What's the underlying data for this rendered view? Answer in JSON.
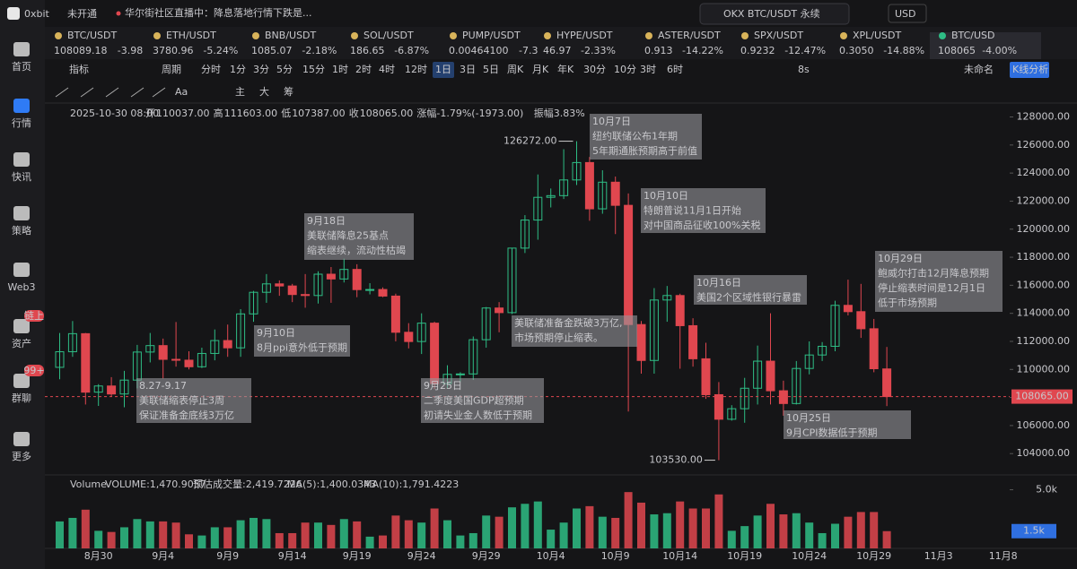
{
  "header": {
    "brand": "0xbit",
    "status": "未开通",
    "news": "华尔街社区直播中：降息落地行情下跌是...",
    "search": "OKX BTC/USDT 永续",
    "currency": "USD"
  },
  "sidebar": [
    {
      "label": "首页"
    },
    {
      "label": "行情"
    },
    {
      "label": "快讯"
    },
    {
      "label": "策略"
    },
    {
      "label": "Web3"
    },
    {
      "label": "资产",
      "badge": "链上"
    },
    {
      "label": "群聊",
      "badge": "99+"
    },
    {
      "label": "更多"
    }
  ],
  "tickers": [
    {
      "symbol": "BTC/USDT",
      "price": "108089.18",
      "change": "-3.98"
    },
    {
      "symbol": "ETH/USDT",
      "price": "3780.96",
      "change": "-5.24%"
    },
    {
      "symbol": "BNB/USDT",
      "price": "1085.07",
      "change": "-2.18%"
    },
    {
      "symbol": "SOL/USDT",
      "price": "186.65",
      "change": "-6.87%"
    },
    {
      "symbol": "PUMP/USDT",
      "price": "0.00464100",
      "change": "-7.3"
    },
    {
      "symbol": "HYPE/USDT",
      "price": "46.97",
      "change": "-2.33%"
    },
    {
      "symbol": "ASTER/USDT",
      "price": "0.913",
      "change": "-14.22%"
    },
    {
      "symbol": "SPX/USDT",
      "price": "0.9232",
      "change": "-12.47%"
    },
    {
      "symbol": "XPL/USDT",
      "price": "0.3050",
      "change": "-14.88%"
    },
    {
      "symbol": "BTC/USD",
      "price": "108065",
      "change": "-4.00%"
    }
  ],
  "toolbar": {
    "items": [
      "指标",
      "周期",
      "分时",
      "1分",
      "3分",
      "5分",
      "15分",
      "1时",
      "2时",
      "4时",
      "12时",
      "1日",
      "3日",
      "5日",
      "周K",
      "月K",
      "年K",
      "30分",
      "10分",
      "3时",
      "6时"
    ],
    "active": "1日",
    "right": [
      "8s",
      "未命名",
      "K线分析"
    ]
  },
  "draw_tools": [
    "Aa",
    "主",
    "大",
    "筹"
  ],
  "info": {
    "time": "2025-10-30 08:00",
    "fields": [
      {
        "label": "开",
        "value": "110037.00"
      },
      {
        "label": "高",
        "value": "111603.00"
      },
      {
        "label": "低",
        "value": "107387.00"
      },
      {
        "label": "收",
        "value": "108065.00"
      },
      {
        "label": "涨幅",
        "value": "-1.79%(-1973.00)"
      },
      {
        "label": "振幅",
        "value": "3.83%"
      }
    ]
  },
  "volume_info": {
    "title": "Volume",
    "volume": "VOLUME:1,470.9057",
    "estimate": "预估成交量:2,419.7226",
    "ma5": "MA(5):1,400.0343",
    "ma10": "MA(10):1,791.4223"
  },
  "chart_data": {
    "type": "candlestick",
    "up_color": "#2ebd85",
    "down_color": "#e0474f",
    "categories": [
      null,
      null,
      null,
      "8月30",
      null,
      null,
      null,
      null,
      "9月4",
      null,
      null,
      null,
      null,
      "9月9",
      null,
      null,
      null,
      null,
      "9月14",
      null,
      null,
      null,
      null,
      "9月19",
      null,
      null,
      null,
      null,
      "9月24",
      null,
      null,
      null,
      null,
      "9月29",
      null,
      null,
      null,
      null,
      "10月4",
      null,
      null,
      null,
      null,
      "10月9",
      null,
      null,
      null,
      null,
      "10月14",
      null,
      null,
      null,
      null,
      "10月19",
      null,
      null,
      null,
      null,
      "10月24",
      null,
      null,
      null,
      null,
      "10月29",
      null
    ],
    "future_categories": [
      "11月3",
      "11月8"
    ],
    "open": [
      110150,
      111262,
      112550,
      108380,
      108820,
      108250,
      109240,
      111240,
      111700,
      110720,
      110660,
      110190,
      111140,
      112060,
      111540,
      113960,
      115500,
      116100,
      115950,
      115340,
      115270,
      116790,
      116450,
      117130,
      115690,
      115700,
      115230,
      112650,
      111990,
      113300,
      108990,
      109650,
      109680,
      112120,
      114380,
      114050,
      118650,
      120650,
      122270,
      122390,
      123510,
      124750,
      121450,
      123350,
      121700,
      113200,
      110640,
      114950,
      115270,
      113120,
      110760,
      108200,
      106450,
      107200,
      108660,
      110590,
      108480,
      107570,
      110070,
      111030,
      111650,
      114570,
      114120,
      112900,
      110037
    ],
    "high": [
      112600,
      113450,
      112600,
      108950,
      109450,
      109900,
      111750,
      112600,
      112200,
      113380,
      111300,
      111550,
      112850,
      113200,
      114300,
      115600,
      116800,
      116350,
      116100,
      116800,
      117000,
      117300,
      117900,
      117500,
      116150,
      115850,
      115400,
      113300,
      114000,
      113400,
      110300,
      109800,
      112350,
      114450,
      114800,
      118650,
      121000,
      123900,
      122900,
      125700,
      126272,
      125150,
      124200,
      123750,
      122550,
      113450,
      115800,
      115950,
      115400,
      113650,
      111900,
      109100,
      107450,
      109400,
      111700,
      114000,
      109200,
      110600,
      112000,
      111950,
      114900,
      116400,
      116100,
      113600,
      111603
    ],
    "low": [
      109300,
      110900,
      107500,
      107400,
      108050,
      107300,
      108650,
      110500,
      109350,
      110200,
      110000,
      110100,
      110650,
      110900,
      110900,
      113400,
      114750,
      115250,
      114800,
      114400,
      114700,
      114750,
      116200,
      115150,
      115350,
      115150,
      112000,
      111500,
      111100,
      108600,
      108650,
      109100,
      109250,
      111550,
      112650,
      113950,
      118300,
      119250,
      121550,
      122150,
      123150,
      120600,
      121100,
      119650,
      107000,
      109700,
      109700,
      113400,
      110050,
      110200,
      107900,
      103530,
      106350,
      106200,
      107500,
      107500,
      106700,
      107500,
      109650,
      110600,
      111300,
      113850,
      112250,
      109800,
      107387
    ],
    "close": [
      111262,
      112550,
      108380,
      108820,
      108250,
      109240,
      111240,
      111700,
      110720,
      110660,
      110190,
      111140,
      112060,
      111540,
      113960,
      115500,
      116100,
      115950,
      115340,
      115270,
      116790,
      116450,
      117130,
      115690,
      115700,
      115230,
      112650,
      111990,
      113300,
      108990,
      109650,
      109680,
      112120,
      114380,
      114050,
      118650,
      120650,
      122270,
      122390,
      123510,
      124750,
      121450,
      123350,
      121700,
      113200,
      110640,
      114950,
      115270,
      113120,
      110760,
      108200,
      106450,
      107200,
      108660,
      110590,
      108480,
      107570,
      110070,
      111030,
      111650,
      114570,
      114120,
      112900,
      110050,
      108065
    ],
    "volume": [
      2300,
      2600,
      3300,
      1500,
      1400,
      1800,
      2500,
      2300,
      2300,
      2200,
      1200,
      1100,
      1800,
      1800,
      2400,
      2600,
      2500,
      1300,
      1300,
      2200,
      2200,
      2000,
      2500,
      2300,
      1000,
      1100,
      2800,
      2400,
      2200,
      3400,
      2400,
      1100,
      1300,
      2800,
      2700,
      3500,
      3800,
      4000,
      1600,
      2200,
      3400,
      3600,
      2700,
      2600,
      4800,
      3900,
      2900,
      3000,
      4000,
      3400,
      3400,
      4600,
      1500,
      1900,
      2800,
      3800,
      2900,
      3000,
      2200,
      1300,
      2100,
      2700,
      3100,
      3100,
      1470.9057
    ],
    "ylim": [
      102800,
      128800
    ],
    "yticks": [
      {
        "value": 104000,
        "label": "104000.00"
      },
      {
        "value": 106000,
        "label": "106000.00"
      },
      {
        "value": 108000,
        "label": "108000.00"
      },
      {
        "value": 110000,
        "label": "110000.00"
      },
      {
        "value": 112000,
        "label": "112000.00"
      },
      {
        "value": 114000,
        "label": "114000.00"
      },
      {
        "value": 116000,
        "label": "116000.00"
      },
      {
        "value": 118000,
        "label": "118000.00"
      },
      {
        "value": 120000,
        "label": "120000.00"
      },
      {
        "value": 122000,
        "label": "122000.00"
      },
      {
        "value": 124000,
        "label": "124000.00"
      },
      {
        "value": 126000,
        "label": "126000.00"
      },
      {
        "value": 128000,
        "label": "128000.00"
      }
    ],
    "vlim": [
      0,
      5500
    ],
    "vticks": [
      {
        "value": 5000,
        "label": "5.0k"
      }
    ],
    "last_volume": {
      "value": 1470.9057,
      "label": "1.5k"
    },
    "last_price": {
      "value": 108065,
      "label": "108065.00"
    },
    "max_marker": {
      "value": 126272,
      "label": "126272.00"
    },
    "min_marker": {
      "value": 103530,
      "label": "103530.00"
    },
    "grid": false,
    "annotations": [
      {
        "lines": [
          "8.27-9.17",
          "美联储缩表停止3周",
          "保证准备金底线3万亿"
        ],
        "color": "#f2d21b"
      },
      {
        "lines": [
          "9月10日",
          "8月ppi意外低于预期"
        ],
        "color": "#f2d21b"
      },
      {
        "lines": [
          "9月18日",
          "美联储降息25基点",
          "缩表继续，流动性枯竭"
        ],
        "color": "#ffffff"
      },
      {
        "lines": [
          "9月25日",
          "二季度美国GDP超预期",
          "初请失业金人数低于预期"
        ],
        "color": "#f2d21b"
      },
      {
        "lines": [
          "美联储准备金跌破3万亿,",
          "市场预期停止缩表。"
        ],
        "color": "#f2d21b"
      },
      {
        "lines": [
          "10月7日",
          "纽约联储公布1年期",
          "5年期通胀预期高于前值"
        ],
        "color": "#ffffff"
      },
      {
        "lines": [
          "10月10日",
          "特朗普说11月1日开始",
          "对中国商品征收100%关税"
        ],
        "color": "#ffffff"
      },
      {
        "lines": [
          "10月16日",
          "美国2个区域性银行暴雷"
        ],
        "color": "#ffffff"
      },
      {
        "lines": [
          "10月25日",
          "9月CPI数据低于预期"
        ],
        "color": "#f2d21b"
      },
      {
        "lines": [
          "10月29日",
          "鲍威尔打击12月降息预期",
          "停止缩表时间是12月1日",
          "低于市场预期"
        ],
        "color": "#ffffff"
      }
    ]
  }
}
